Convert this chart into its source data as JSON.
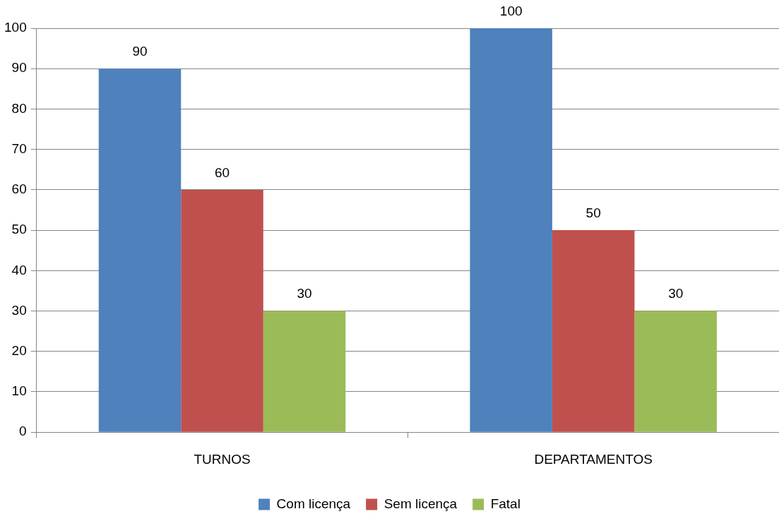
{
  "chart_data": {
    "type": "bar",
    "categories": [
      "TURNOS",
      "DEPARTAMENTOS"
    ],
    "series": [
      {
        "name": "Com licença",
        "color": "#4f81bd",
        "values": [
          90,
          100
        ]
      },
      {
        "name": "Sem licença",
        "color": "#c0504d",
        "values": [
          60,
          50
        ]
      },
      {
        "name": "Fatal",
        "color": "#9bbb59",
        "values": [
          30,
          30
        ]
      }
    ],
    "ylim": [
      0,
      100
    ],
    "yticks": [
      0,
      10,
      20,
      30,
      40,
      50,
      60,
      70,
      80,
      90,
      100
    ],
    "grid": "y",
    "legend": "bottom",
    "data_labels": true
  }
}
